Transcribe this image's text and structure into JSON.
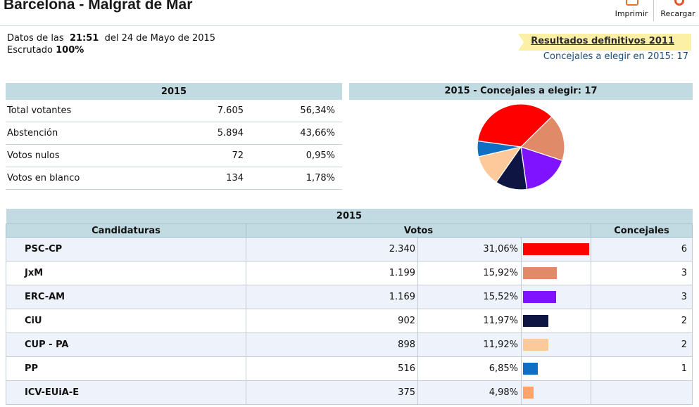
{
  "header": {
    "title": "Barcelona - Malgrat de Mar",
    "print_label": "Imprimir",
    "reload_label": "Recargar"
  },
  "info": {
    "data_prefix": "Datos de las",
    "time": "21:51",
    "date_text": "del 24 de Mayo de 2015",
    "scrutiny_label": "Escrutado",
    "scrutiny_value": "100%"
  },
  "links": {
    "final_results": "Resultados definitivos 2011",
    "councillors_to_elect": "Concejales a elegir en 2015: 17"
  },
  "summary": {
    "year": "2015",
    "rows": [
      {
        "label": "Total votantes",
        "value": "7.605",
        "percent": "56,34%"
      },
      {
        "label": "Abstención",
        "value": "5.894",
        "percent": "43,66%"
      },
      {
        "label": "Votos nulos",
        "value": "72",
        "percent": "0,95%"
      },
      {
        "label": "Votos en blanco",
        "value": "134",
        "percent": "1,78%"
      }
    ]
  },
  "pie": {
    "title": "2015 - Concejales a elegir: 17"
  },
  "chart_data": {
    "type": "pie",
    "title": "2015 - Concejales a elegir: 17",
    "categories": [
      "PSC-CP",
      "JxM",
      "ERC-AM",
      "CiU",
      "CUP - PA",
      "PP"
    ],
    "values": [
      6,
      3,
      3,
      2,
      2,
      1
    ],
    "colors": [
      "#ff0000",
      "#e08a68",
      "#7f12ff",
      "#0e1542",
      "#fdc99a",
      "#0f6fc4"
    ]
  },
  "results": {
    "year": "2015",
    "col_party": "Candidaturas",
    "col_votes": "Votos",
    "col_seats": "Concejales",
    "max_percent": 31.06,
    "rows": [
      {
        "party": "PSC-CP",
        "votes": "2.340",
        "percent": "31,06%",
        "pct": 31.06,
        "color": "#ff0000",
        "seats": "6"
      },
      {
        "party": "JxM",
        "votes": "1.199",
        "percent": "15,92%",
        "pct": 15.92,
        "color": "#e08a68",
        "seats": "3"
      },
      {
        "party": "ERC-AM",
        "votes": "1.169",
        "percent": "15,52%",
        "pct": 15.52,
        "color": "#7f12ff",
        "seats": "3"
      },
      {
        "party": "CiU",
        "votes": "902",
        "percent": "11,97%",
        "pct": 11.97,
        "color": "#0e1542",
        "seats": "2"
      },
      {
        "party": "CUP - PA",
        "votes": "898",
        "percent": "11,92%",
        "pct": 11.92,
        "color": "#fdc99a",
        "seats": "2"
      },
      {
        "party": "PP",
        "votes": "516",
        "percent": "6,85%",
        "pct": 6.85,
        "color": "#0f6fc4",
        "seats": "1"
      },
      {
        "party": "ICV-EUiA-E",
        "votes": "375",
        "percent": "4,98%",
        "pct": 4.98,
        "color": "#ffa36a",
        "seats": ""
      }
    ]
  }
}
